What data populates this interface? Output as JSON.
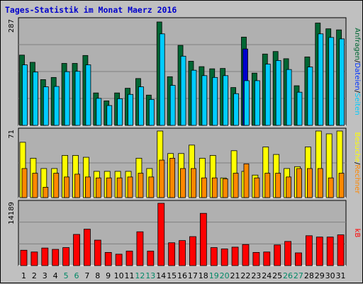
{
  "title": "Tages-Statistik im Monat Maerz 2016",
  "colors": {
    "background": "#C0C0C0",
    "plot_bg": "#B0B0B0",
    "grid": "#808080",
    "title": "#0000CC",
    "hits": "#006633",
    "files": "#0033FF",
    "pages": "#00CCFF",
    "visits": "#FFFF00",
    "sites": "#FF8800",
    "kbytes": "#FF0000",
    "weekend": "#008866",
    "weekday": "#000000",
    "highlight_files": "#0000CC"
  },
  "chart_data": [
    {
      "type": "bar",
      "name": "hits-files-pages",
      "ymax_label": "287",
      "ymax": 287,
      "side_label_parts": [
        "Anfragen",
        "/",
        "Dateien",
        "/",
        "Seiten"
      ],
      "categories": [
        "1",
        "2",
        "3",
        "4",
        "5",
        "6",
        "7",
        "8",
        "9",
        "10",
        "11",
        "12",
        "13",
        "14",
        "15",
        "16",
        "17",
        "18",
        "19",
        "20",
        "21",
        "22",
        "23",
        "24",
        "25",
        "26",
        "27",
        "28",
        "29",
        "30",
        "31"
      ],
      "series": [
        {
          "name": "Anfragen",
          "values": [
            195,
            175,
            127,
            133,
            172,
            172,
            194,
            90,
            68,
            90,
            103,
            130,
            84,
            287,
            135,
            222,
            178,
            163,
            157,
            158,
            105,
            245,
            145,
            198,
            205,
            185,
            110,
            190,
            284,
            268,
            265
          ]
        },
        {
          "name": "Dateien",
          "values": [
            168,
            148,
            107,
            108,
            149,
            150,
            168,
            75,
            55,
            74,
            86,
            107,
            72,
            204,
            111,
            192,
            153,
            138,
            133,
            138,
            88,
            212,
            124,
            170,
            180,
            155,
            92,
            162,
            254,
            244,
            240
          ]
        },
        {
          "name": "Seiten",
          "values": [
            168,
            148,
            107,
            108,
            149,
            150,
            168,
            75,
            55,
            74,
            86,
            107,
            72,
            254,
            111,
            192,
            153,
            138,
            133,
            138,
            88,
            124,
            124,
            170,
            180,
            155,
            92,
            162,
            254,
            244,
            240
          ]
        }
      ]
    },
    {
      "type": "bar",
      "name": "visits-sites",
      "ymax_label": "71",
      "ymax": 71,
      "side_label_parts": [
        "Besuche",
        "/",
        "Rechner"
      ],
      "categories": [
        "1",
        "2",
        "3",
        "4",
        "5",
        "6",
        "7",
        "8",
        "9",
        "10",
        "11",
        "12",
        "13",
        "14",
        "15",
        "16",
        "17",
        "18",
        "19",
        "20",
        "21",
        "22",
        "23",
        "24",
        "25",
        "26",
        "27",
        "28",
        "29",
        "30",
        "31"
      ],
      "series": [
        {
          "name": "Besuche",
          "values": [
            59,
            42,
            31,
            31,
            45,
            45,
            43,
            28,
            28,
            28,
            28,
            42,
            31,
            71,
            47,
            47,
            56,
            42,
            45,
            21,
            50,
            28,
            24,
            54,
            46,
            31,
            33,
            54,
            71,
            68,
            71
          ]
        },
        {
          "name": "Rechner",
          "values": [
            31,
            26,
            11,
            26,
            22,
            25,
            22,
            21,
            21,
            21,
            22,
            26,
            22,
            40,
            42,
            31,
            31,
            21,
            21,
            20,
            26,
            36,
            21,
            26,
            26,
            22,
            31,
            31,
            31,
            21,
            26
          ]
        }
      ]
    },
    {
      "type": "bar",
      "name": "kbytes",
      "ymax_label": "14189",
      "ymax": 14189,
      "side_label_parts": [
        "kB"
      ],
      "categories": [
        "1",
        "2",
        "3",
        "4",
        "5",
        "6",
        "7",
        "8",
        "9",
        "10",
        "11",
        "12",
        "13",
        "14",
        "15",
        "16",
        "17",
        "18",
        "19",
        "20",
        "21",
        "22",
        "23",
        "24",
        "25",
        "26",
        "27",
        "28",
        "29",
        "30",
        "31"
      ],
      "series": [
        {
          "name": "kB",
          "values": [
            3500,
            3100,
            4000,
            3700,
            4100,
            7100,
            8300,
            5800,
            3000,
            2600,
            3300,
            7700,
            3300,
            14189,
            5200,
            5700,
            6600,
            11900,
            4100,
            3800,
            4200,
            4800,
            3000,
            3100,
            4700,
            5500,
            2900,
            6800,
            6500,
            6500,
            7000
          ]
        }
      ],
      "weekend_days": [
        5,
        6,
        12,
        13,
        19,
        20,
        26,
        27
      ]
    }
  ]
}
